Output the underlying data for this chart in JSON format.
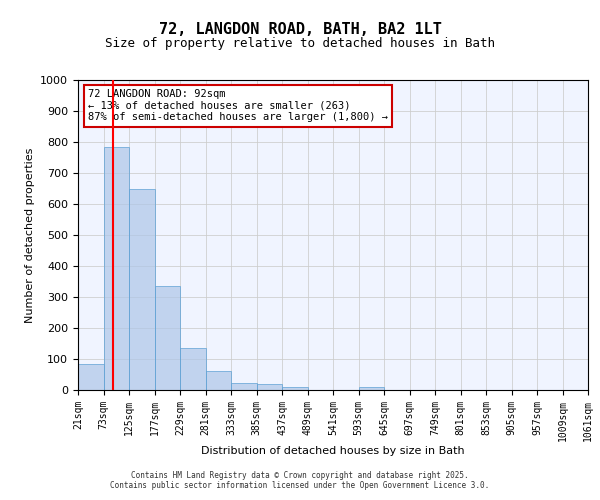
{
  "title_line1": "72, LANGDON ROAD, BATH, BA2 1LT",
  "title_line2": "Size of property relative to detached houses in Bath",
  "xlabel": "Distribution of detached houses by size in Bath",
  "ylabel": "Number of detached properties",
  "bin_labels": [
    "21sqm",
    "73sqm",
    "125sqm",
    "177sqm",
    "229sqm",
    "281sqm",
    "333sqm",
    "385sqm",
    "437sqm",
    "489sqm",
    "541sqm",
    "593sqm",
    "645sqm",
    "697sqm",
    "749sqm",
    "801sqm",
    "853sqm",
    "905sqm",
    "957sqm",
    "1009sqm",
    "1061sqm"
  ],
  "bar_heights": [
    85,
    785,
    650,
    335,
    135,
    60,
    22,
    18,
    10,
    0,
    0,
    10,
    0,
    0,
    0,
    0,
    0,
    0,
    0,
    0
  ],
  "bar_color": "#aec6e8",
  "bar_edge_color": "#5a9fd4",
  "bar_alpha": 0.7,
  "red_line_x": 92,
  "ylim": [
    0,
    1000
  ],
  "yticks": [
    0,
    100,
    200,
    300,
    400,
    500,
    600,
    700,
    800,
    900,
    1000
  ],
  "annotation_title": "72 LANGDON ROAD: 92sqm",
  "annotation_line2": "← 13% of detached houses are smaller (263)",
  "annotation_line3": "87% of semi-detached houses are larger (1,800) →",
  "annotation_box_color": "#ffffff",
  "annotation_box_edge": "#cc0000",
  "footer_line1": "Contains HM Land Registry data © Crown copyright and database right 2025.",
  "footer_line2": "Contains public sector information licensed under the Open Government Licence 3.0.",
  "background_color": "#f0f4ff",
  "grid_color": "#cccccc",
  "bin_width": 52
}
